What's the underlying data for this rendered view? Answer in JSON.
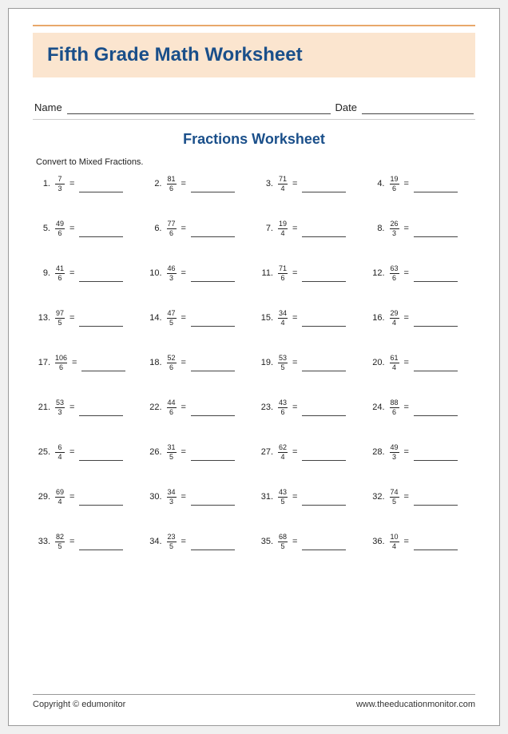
{
  "colors": {
    "accent_orange": "#e8a86b",
    "title_band_bg": "#fbe5cf",
    "heading_blue": "#1a4f8a",
    "text": "#222222",
    "line": "#444444",
    "page_bg": "#ffffff"
  },
  "title": "Fifth Grade Math Worksheet",
  "name_label": "Name",
  "date_label": "Date",
  "subtitle": "Fractions Worksheet",
  "instruction": "Convert to Mixed Fractions.",
  "equals": "=",
  "problems": [
    {
      "n": "1.",
      "num": "7",
      "den": "3"
    },
    {
      "n": "2.",
      "num": "81",
      "den": "6"
    },
    {
      "n": "3.",
      "num": "71",
      "den": "4"
    },
    {
      "n": "4.",
      "num": "19",
      "den": "6"
    },
    {
      "n": "5.",
      "num": "49",
      "den": "6"
    },
    {
      "n": "6.",
      "num": "77",
      "den": "6"
    },
    {
      "n": "7.",
      "num": "19",
      "den": "4"
    },
    {
      "n": "8.",
      "num": "26",
      "den": "3"
    },
    {
      "n": "9.",
      "num": "41",
      "den": "6"
    },
    {
      "n": "10.",
      "num": "46",
      "den": "3"
    },
    {
      "n": "11.",
      "num": "71",
      "den": "6"
    },
    {
      "n": "12.",
      "num": "63",
      "den": "6"
    },
    {
      "n": "13.",
      "num": "97",
      "den": "5"
    },
    {
      "n": "14.",
      "num": "47",
      "den": "5"
    },
    {
      "n": "15.",
      "num": "34",
      "den": "4"
    },
    {
      "n": "16.",
      "num": "29",
      "den": "4"
    },
    {
      "n": "17.",
      "num": "106",
      "den": "6"
    },
    {
      "n": "18.",
      "num": "52",
      "den": "6"
    },
    {
      "n": "19.",
      "num": "53",
      "den": "5"
    },
    {
      "n": "20.",
      "num": "61",
      "den": "4"
    },
    {
      "n": "21.",
      "num": "53",
      "den": "3"
    },
    {
      "n": "22.",
      "num": "44",
      "den": "6"
    },
    {
      "n": "23.",
      "num": "43",
      "den": "6"
    },
    {
      "n": "24.",
      "num": "88",
      "den": "6"
    },
    {
      "n": "25.",
      "num": "6",
      "den": "4"
    },
    {
      "n": "26.",
      "num": "31",
      "den": "5"
    },
    {
      "n": "27.",
      "num": "62",
      "den": "4"
    },
    {
      "n": "28.",
      "num": "49",
      "den": "3"
    },
    {
      "n": "29.",
      "num": "69",
      "den": "4"
    },
    {
      "n": "30.",
      "num": "34",
      "den": "3"
    },
    {
      "n": "31.",
      "num": "43",
      "den": "5"
    },
    {
      "n": "32.",
      "num": "74",
      "den": "5"
    },
    {
      "n": "33.",
      "num": "82",
      "den": "5"
    },
    {
      "n": "34.",
      "num": "23",
      "den": "5"
    },
    {
      "n": "35.",
      "num": "68",
      "den": "5"
    },
    {
      "n": "36.",
      "num": "10",
      "den": "4"
    }
  ],
  "footer_left": "Copyright © edumonitor",
  "footer_right": "www.theeducationmonitor.com"
}
